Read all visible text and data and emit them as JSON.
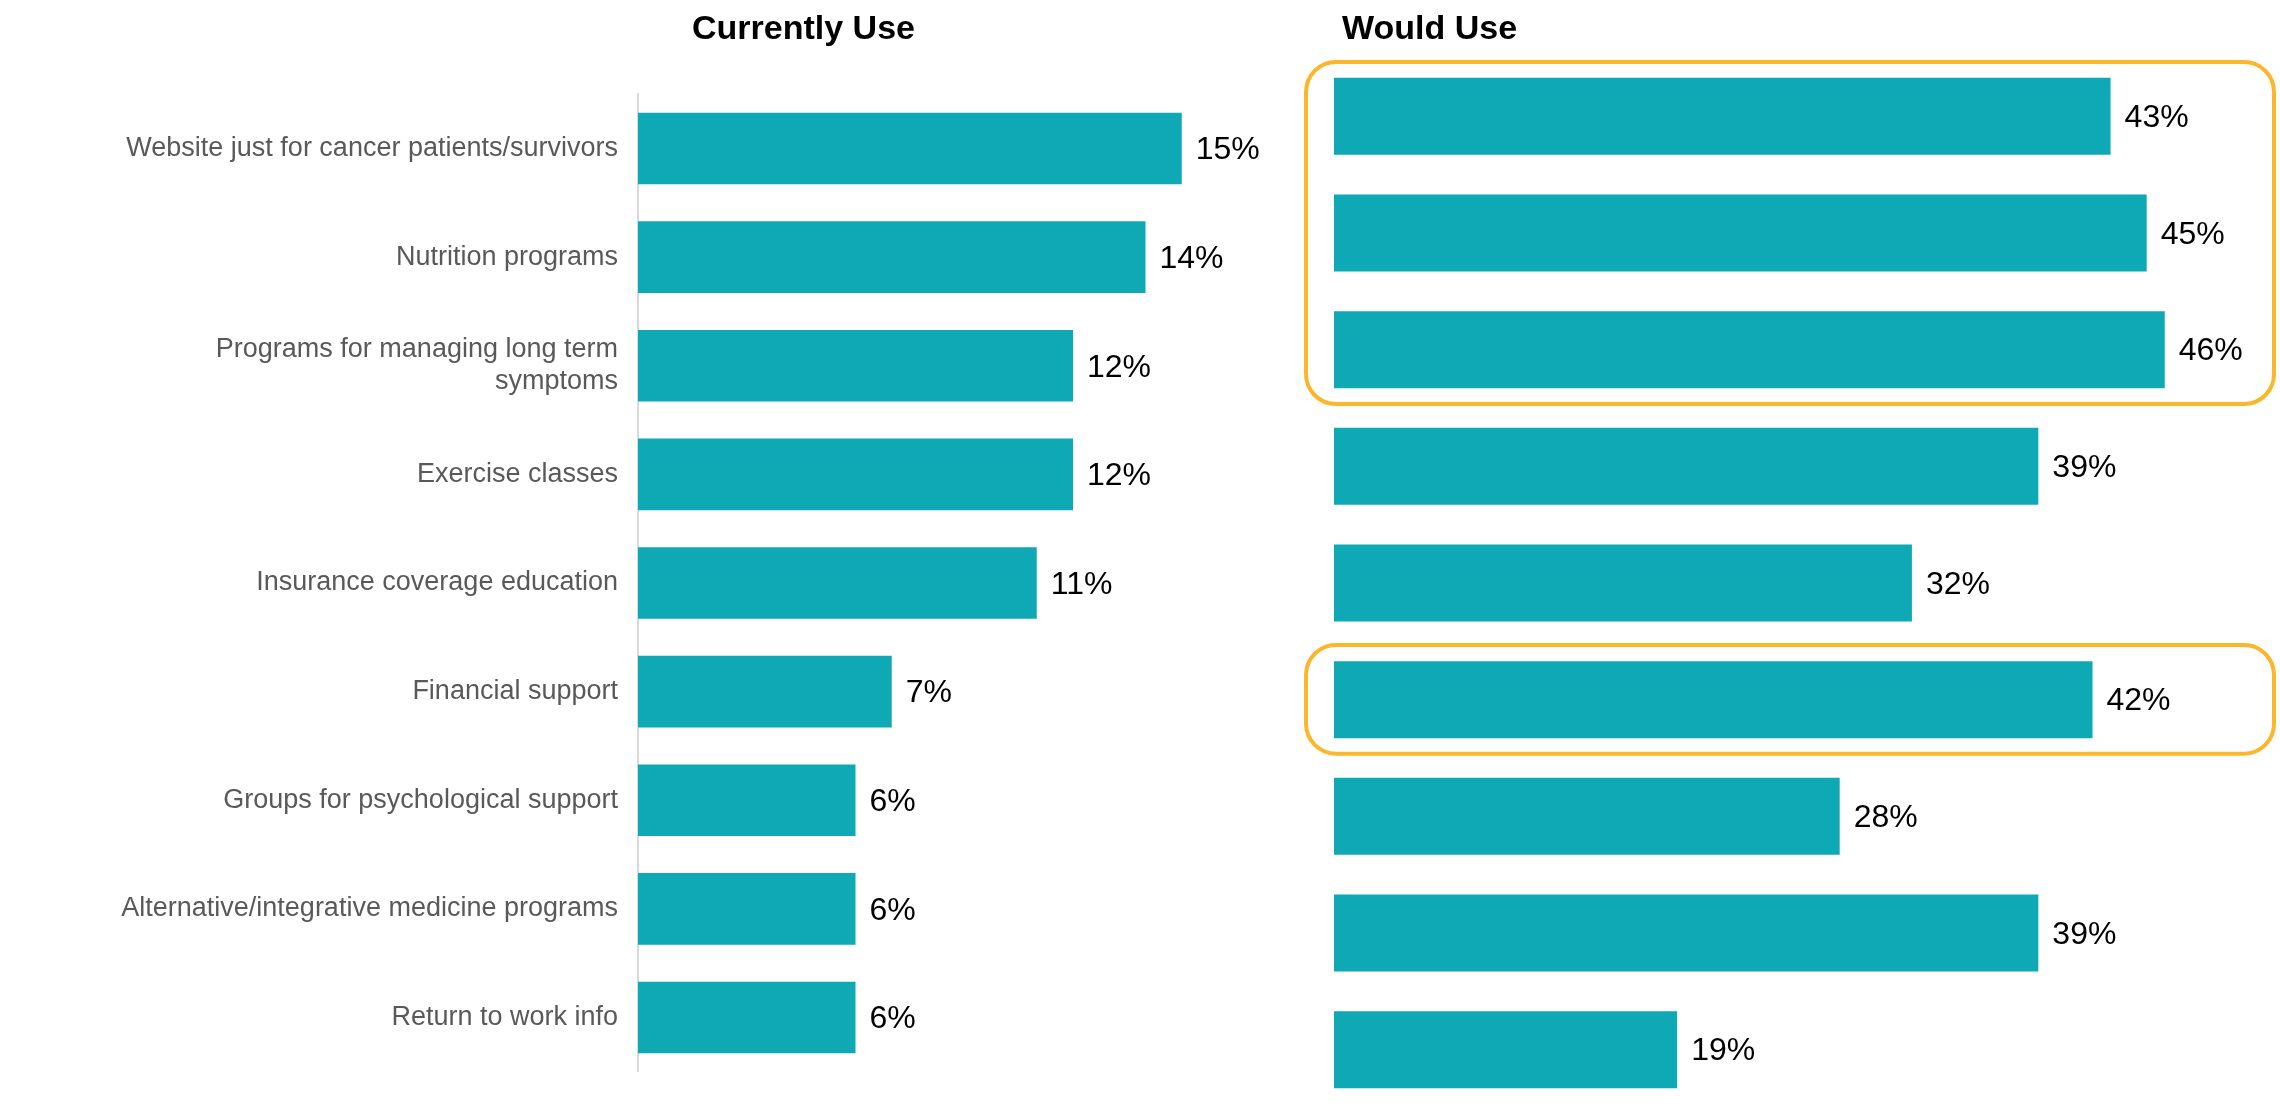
{
  "chart_data": [
    {
      "type": "bar",
      "orientation": "horizontal",
      "title": "Currently Use",
      "categories": [
        "Website just for cancer patients/survivors",
        "Nutrition programs",
        "Programs for managing long term symptoms",
        "Exercise classes",
        "Insurance coverage education",
        "Financial support",
        "Groups for psychological support",
        "Alternative/integrative medicine programs",
        "Return to work info"
      ],
      "values": [
        15,
        14,
        12,
        12,
        11,
        7,
        6,
        6,
        6
      ],
      "value_labels": [
        "15%",
        "14%",
        "12%",
        "12%",
        "11%",
        "7%",
        "6%",
        "6%",
        "6%"
      ],
      "color": "#0fa9b5",
      "tick_labels": "y",
      "grid": false,
      "legend": false
    },
    {
      "type": "bar",
      "orientation": "horizontal",
      "title": "Would Use",
      "categories": [
        null,
        null,
        null,
        null,
        null,
        null,
        null,
        null,
        null
      ],
      "values": [
        43,
        45,
        46,
        39,
        32,
        42,
        28,
        39,
        19
      ],
      "value_labels": [
        "43%",
        "45%",
        "46%",
        "39%",
        "32%",
        "42%",
        "28%",
        "39%",
        "19%"
      ],
      "color": "#0fa9b5",
      "tick_labels": false,
      "grid": false,
      "legend": false
    }
  ]
}
